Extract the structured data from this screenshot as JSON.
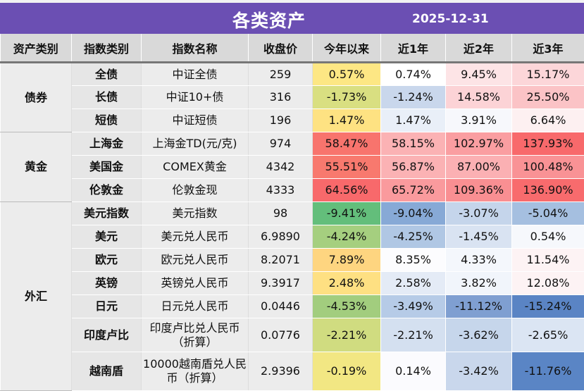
{
  "header": {
    "title": "各类资产",
    "date": "2025-12-31"
  },
  "columns": [
    "资产类别",
    "指数类别",
    "指数名称",
    "收盘价",
    "今年以来",
    "近1年",
    "近2年",
    "近3年"
  ],
  "groups": [
    {
      "name": "债券",
      "rows": [
        {
          "sub": "全债",
          "name": "中证全债",
          "price": "259",
          "vals": [
            "0.57%",
            "0.74%",
            "9.45%",
            "15.17%"
          ],
          "colors": [
            "#fde784",
            "#ffffff",
            "#fde4e6",
            "#fcd6d9"
          ]
        },
        {
          "sub": "长债",
          "name": "中证10+债",
          "price": "316",
          "vals": [
            "-1.73%",
            "-1.24%",
            "14.58%",
            "25.50%"
          ],
          "colors": [
            "#d9df81",
            "#c9d7ec",
            "#fcd3d6",
            "#fbc3c6"
          ]
        },
        {
          "sub": "短债",
          "name": "中证短债",
          "price": "196",
          "vals": [
            "1.47%",
            "1.47%",
            "3.91%",
            "6.64%"
          ],
          "colors": [
            "#fee282",
            "#e9eff8",
            "#f7f8fc",
            "#fdf0f1"
          ]
        }
      ]
    },
    {
      "name": "黄金",
      "rows": [
        {
          "sub": "上海金",
          "name": "上海金TD(元/克)",
          "price": "974",
          "vals": [
            "58.47%",
            "58.15%",
            "102.97%",
            "137.93%"
          ],
          "colors": [
            "#f8746d",
            "#fbb2b4",
            "#fa9ea1",
            "#f8696b"
          ]
        },
        {
          "sub": "美国金",
          "name": "COMEX黄金",
          "price": "4342",
          "vals": [
            "55.51%",
            "56.87%",
            "87.00%",
            "100.48%"
          ],
          "colors": [
            "#f8796e",
            "#fbb2b4",
            "#fbb0b3",
            "#f99295"
          ]
        },
        {
          "sub": "伦敦金",
          "name": "伦敦金现",
          "price": "4333",
          "vals": [
            "64.56%",
            "65.72%",
            "109.36%",
            "136.90%"
          ],
          "colors": [
            "#f8696b",
            "#fa9a9d",
            "#f98f92",
            "#f86b6d"
          ]
        }
      ]
    },
    {
      "name": "外汇",
      "rows": [
        {
          "sub": "美元指数",
          "name": "美元指数",
          "price": "98",
          "vals": [
            "-9.41%",
            "-9.04%",
            "-3.07%",
            "-5.04%"
          ],
          "colors": [
            "#63be7b",
            "#87a9d6",
            "#c5d5eb",
            "#a5bfe0"
          ]
        },
        {
          "sub": "美元",
          "name": "美元兑人民币",
          "price": "6.9890",
          "vals": [
            "-4.24%",
            "-4.25%",
            "-1.45%",
            "0.54%"
          ],
          "colors": [
            "#a5cf7f",
            "#b0c7e4",
            "#d9e3f2",
            "#f6f8fc"
          ]
        },
        {
          "sub": "欧元",
          "name": "欧元兑人民币",
          "price": "8.2071",
          "vals": [
            "7.89%",
            "8.35%",
            "4.33%",
            "11.54%"
          ],
          "colors": [
            "#fed580",
            "#fcfcfe",
            "#f4f7fc",
            "#fdf3f4"
          ]
        },
        {
          "sub": "英镑",
          "name": "英镑兑人民币",
          "price": "9.3917",
          "vals": [
            "2.48%",
            "2.58%",
            "3.82%",
            "12.08%"
          ],
          "colors": [
            "#fee082",
            "#e4ebf6",
            "#f1f5fb",
            "#fdf3f4"
          ]
        },
        {
          "sub": "日元",
          "name": "日元兑人民币",
          "price": "0.0446",
          "vals": [
            "-4.53%",
            "-3.49%",
            "-11.12%",
            "-15.24%"
          ],
          "colors": [
            "#a2cd7e",
            "#b6cbe7",
            "#7f9fd1",
            "#5a84c4"
          ]
        },
        {
          "sub": "印度卢比",
          "name": "印度卢比兑人民币（折算）",
          "price": "0.0776",
          "vals": [
            "-2.21%",
            "-2.21%",
            "-3.62%",
            "-2.65%"
          ],
          "colors": [
            "#d0dc80",
            "#d4e0f0",
            "#c6d6eb",
            "#dbe5f3"
          ]
        },
        {
          "sub": "越南盾",
          "name": "10000越南盾兑人民币（折算）",
          "price": "2.9396",
          "vals": [
            "-0.19%",
            "0.14%",
            "-3.42%",
            "-11.76%"
          ],
          "colors": [
            "#f2e783",
            "#fbfbfe",
            "#c9d7ec",
            "#5a85c5"
          ]
        }
      ]
    }
  ]
}
